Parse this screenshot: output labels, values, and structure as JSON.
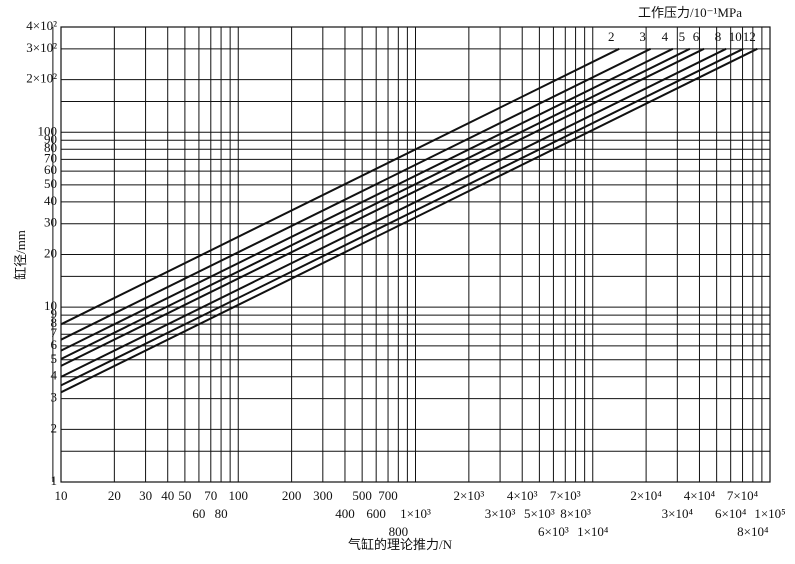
{
  "chart_data": {
    "type": "line",
    "legend_title": "工作压力/10⁻¹MPa",
    "xlabel": "气缸的理论推力/N",
    "ylabel": "缸径/mm",
    "log_x": true,
    "log_y": true,
    "grid": true,
    "color": "#111111",
    "xlim": [
      10,
      100000
    ],
    "ylim": [
      1,
      400
    ],
    "xticks": [
      10,
      20,
      30,
      40,
      50,
      60,
      70,
      80,
      100,
      200,
      300,
      400,
      500,
      600,
      700,
      800,
      {
        "value": 1000,
        "label": "1×10³"
      },
      {
        "value": 2000,
        "label": "2×10³"
      },
      {
        "value": 3000,
        "label": "3×10³"
      },
      {
        "value": 4000,
        "label": "4×10³"
      },
      {
        "value": 5000,
        "label": "5×10³"
      },
      {
        "value": 6000,
        "label": "6×10³"
      },
      {
        "value": 7000,
        "label": "7×10³"
      },
      {
        "value": 8000,
        "label": "8×10³"
      },
      {
        "value": 10000,
        "label": "1×10⁴"
      },
      {
        "value": 20000,
        "label": "2×10⁴"
      },
      {
        "value": 30000,
        "label": "3×10⁴"
      },
      {
        "value": 40000,
        "label": "4×10⁴"
      },
      {
        "value": 60000,
        "label": "6×10⁴"
      },
      {
        "value": 70000,
        "label": "7×10⁴"
      },
      {
        "value": 80000,
        "label": "8×10⁴"
      },
      {
        "value": 100000,
        "label": "1×10⁵"
      }
    ],
    "xgrid": [
      9,
      90,
      900,
      9000,
      50000,
      90000
    ],
    "yticks": [
      1,
      2,
      3,
      4,
      5,
      6,
      7,
      8,
      9,
      10,
      20,
      30,
      40,
      50,
      60,
      70,
      80,
      90,
      100,
      {
        "value": 200,
        "label": "2×10²"
      },
      {
        "value": 300,
        "label": "3×10²"
      },
      {
        "value": 400,
        "label": "4×10²"
      }
    ],
    "ygrid": [
      1.5,
      15,
      150
    ],
    "series": [
      {
        "name": "2",
        "x": [
          10,
          14100
        ],
        "values": [
          7.98,
          300
        ]
      },
      {
        "name": "3",
        "x": [
          10,
          21200
        ],
        "values": [
          6.51,
          300
        ]
      },
      {
        "name": "4",
        "x": [
          10,
          28300
        ],
        "values": [
          5.64,
          300
        ]
      },
      {
        "name": "5",
        "x": [
          10,
          35300
        ],
        "values": [
          5.05,
          300
        ]
      },
      {
        "name": "6",
        "x": [
          10,
          42400
        ],
        "values": [
          4.61,
          300
        ]
      },
      {
        "name": "8",
        "x": [
          10,
          56500
        ],
        "values": [
          3.99,
          300
        ]
      },
      {
        "name": "10",
        "x": [
          10,
          70700
        ],
        "values": [
          3.57,
          300
        ]
      },
      {
        "name": "12",
        "x": [
          10,
          84800
        ],
        "values": [
          3.26,
          300
        ]
      }
    ]
  }
}
